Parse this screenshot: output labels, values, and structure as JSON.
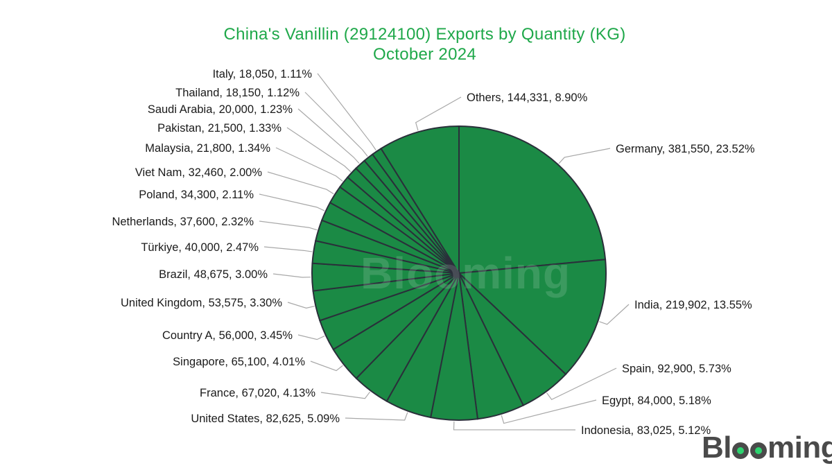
{
  "chart_data": {
    "type": "pie",
    "title": "China's Vanillin (29124100) Exports by Quantity (KG)",
    "subtitle": "October 2024",
    "slice_color": "#1b8a45",
    "title_color": "#1fa84a",
    "slices": [
      {
        "label": "Germany",
        "value": 381550,
        "value_text": "381,550",
        "percent": "23.52%"
      },
      {
        "label": "India",
        "value": 219902,
        "value_text": "219,902",
        "percent": "13.55%"
      },
      {
        "label": "Spain",
        "value": 92900,
        "value_text": "92,900",
        "percent": "5.73%"
      },
      {
        "label": "Egypt",
        "value": 84000,
        "value_text": "84,000",
        "percent": "5.18%"
      },
      {
        "label": "Indonesia",
        "value": 83025,
        "value_text": "83,025",
        "percent": "5.12%"
      },
      {
        "label": "United States",
        "value": 82625,
        "value_text": "82,625",
        "percent": "5.09%"
      },
      {
        "label": "France",
        "value": 67020,
        "value_text": "67,020",
        "percent": "4.13%"
      },
      {
        "label": "Singapore",
        "value": 65100,
        "value_text": "65,100",
        "percent": "4.01%"
      },
      {
        "label": "Country A",
        "value": 56000,
        "value_text": "56,000",
        "percent": "3.45%"
      },
      {
        "label": "United Kingdom",
        "value": 53575,
        "value_text": "53,575",
        "percent": "3.30%"
      },
      {
        "label": "Brazil",
        "value": 48675,
        "value_text": "48,675",
        "percent": "3.00%"
      },
      {
        "label": "Türkiye",
        "value": 40000,
        "value_text": "40,000",
        "percent": "2.47%"
      },
      {
        "label": "Netherlands",
        "value": 37600,
        "value_text": "37,600",
        "percent": "2.32%"
      },
      {
        "label": "Poland",
        "value": 34300,
        "value_text": "34,300",
        "percent": "2.11%"
      },
      {
        "label": "Viet Nam",
        "value": 32460,
        "value_text": "32,460",
        "percent": "2.00%"
      },
      {
        "label": "Malaysia",
        "value": 21800,
        "value_text": "21,800",
        "percent": "1.34%"
      },
      {
        "label": "Pakistan",
        "value": 21500,
        "value_text": "21,500",
        "percent": "1.33%"
      },
      {
        "label": "Saudi Arabia",
        "value": 20000,
        "value_text": "20,000",
        "percent": "1.23%"
      },
      {
        "label": "Thailand",
        "value": 18150,
        "value_text": "18,150",
        "percent": "1.12%"
      },
      {
        "label": "Italy",
        "value": 18050,
        "value_text": "18,050",
        "percent": "1.11%"
      },
      {
        "label": "Others",
        "value": 144331,
        "value_text": "144,331",
        "percent": "8.90%"
      }
    ]
  },
  "watermark": "Blooming",
  "brand": {
    "pre": "Bl",
    "post": "ming"
  }
}
